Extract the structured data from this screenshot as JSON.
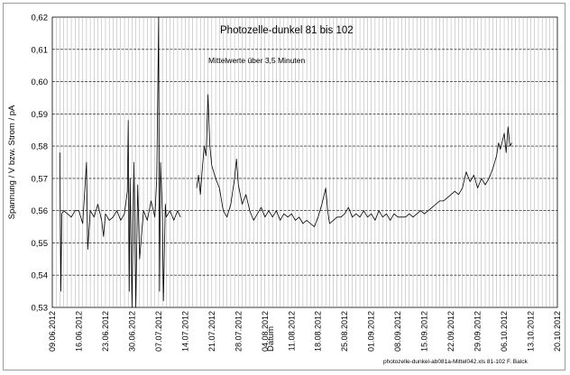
{
  "chart_data": {
    "type": "line",
    "title": "Photozelle-dunkel  81 bis 102",
    "subtitle": "Mittelwerte über 3,5 Minuten",
    "xlabel": "Datum",
    "ylabel": "Spannung / V  bzw. Strom / pA",
    "footer": "photozelle-dunkel-ab081a-Mittel042.xls 81-102 F. Balck",
    "xlim": [
      "2012-06-09",
      "2012-10-20"
    ],
    "ylim": [
      0.53,
      0.62
    ],
    "y_ticks": [
      "0,53",
      "0,54",
      "0,55",
      "0,56",
      "0,57",
      "0,58",
      "0,59",
      "0,60",
      "0,61",
      "0,62"
    ],
    "x_ticks": [
      "09.06.2012",
      "16.06.2012",
      "23.06.2012",
      "30.06.2012",
      "07.07.2012",
      "14.07.2012",
      "21.07.2012",
      "28.07.2012",
      "04.08.2012",
      "11.08.2012",
      "18.08.2012",
      "25.08.2012",
      "01.09.2012",
      "08.09.2012",
      "15.09.2012",
      "22.09.2012",
      "29.09.2012",
      "06.10.2012",
      "13.10.2012",
      "20.10.2012"
    ],
    "grid": true,
    "line_color": "#000000",
    "series_points": [
      [
        "2012-06-11T00:00",
        0.578
      ],
      [
        "2012-06-11T06:00",
        0.535
      ],
      [
        "2012-06-11T12:00",
        0.559
      ],
      [
        "2012-06-12T00:00",
        0.56
      ],
      [
        "2012-06-13T00:00",
        0.559
      ],
      [
        "2012-06-14T00:00",
        0.558
      ],
      [
        "2012-06-15T00:00",
        0.56
      ],
      [
        "2012-06-16T00:00",
        0.56
      ],
      [
        "2012-06-17T00:00",
        0.556
      ],
      [
        "2012-06-18T00:00",
        0.575
      ],
      [
        "2012-06-18T08:00",
        0.548
      ],
      [
        "2012-06-19T00:00",
        0.56
      ],
      [
        "2012-06-20T00:00",
        0.558
      ],
      [
        "2012-06-21T00:00",
        0.562
      ],
      [
        "2012-06-22T00:00",
        0.557
      ],
      [
        "2012-06-22T12:00",
        0.552
      ],
      [
        "2012-06-23T00:00",
        0.559
      ],
      [
        "2012-06-24T00:00",
        0.557
      ],
      [
        "2012-06-25T00:00",
        0.558
      ],
      [
        "2012-06-26T00:00",
        0.56
      ],
      [
        "2012-06-27T00:00",
        0.557
      ],
      [
        "2012-06-28T00:00",
        0.559
      ],
      [
        "2012-06-28T18:00",
        0.566
      ],
      [
        "2012-06-29T00:00",
        0.588
      ],
      [
        "2012-06-29T06:00",
        0.535
      ],
      [
        "2012-06-29T12:00",
        0.57
      ],
      [
        "2012-06-30T00:00",
        0.53
      ],
      [
        "2012-06-30T12:00",
        0.575
      ],
      [
        "2012-07-01T00:00",
        0.53
      ],
      [
        "2012-07-01T12:00",
        0.568
      ],
      [
        "2012-07-02T00:00",
        0.545
      ],
      [
        "2012-07-03T00:00",
        0.56
      ],
      [
        "2012-07-04T00:00",
        0.557
      ],
      [
        "2012-07-05T00:00",
        0.563
      ],
      [
        "2012-07-06T00:00",
        0.558
      ],
      [
        "2012-07-06T12:00",
        0.57
      ],
      [
        "2012-07-07T00:00",
        0.62
      ],
      [
        "2012-07-07T06:00",
        0.535
      ],
      [
        "2012-07-07T12:00",
        0.575
      ],
      [
        "2012-07-08T00:00",
        0.558
      ],
      [
        "2012-07-08T06:00",
        0.532
      ],
      [
        "2012-07-08T18:00",
        0.562
      ],
      [
        "2012-07-09T00:00",
        0.558
      ],
      [
        "2012-07-10T00:00",
        0.56
      ],
      [
        "2012-07-11T00:00",
        0.557
      ],
      [
        "2012-07-12T00:00",
        0.56
      ],
      [
        "2012-07-12T18:00",
        0.558
      ],
      null,
      [
        "2012-07-17T00:00",
        0.567
      ],
      [
        "2012-07-17T12:00",
        0.571
      ],
      [
        "2012-07-18T00:00",
        0.565
      ],
      [
        "2012-07-18T12:00",
        0.573
      ],
      [
        "2012-07-19T00:00",
        0.58
      ],
      [
        "2012-07-19T12:00",
        0.577
      ],
      [
        "2012-07-20T00:00",
        0.596
      ],
      [
        "2012-07-20T12:00",
        0.58
      ],
      [
        "2012-07-21T00:00",
        0.574
      ],
      [
        "2012-07-22T00:00",
        0.57
      ],
      [
        "2012-07-23T00:00",
        0.567
      ],
      [
        "2012-07-24T00:00",
        0.56
      ],
      [
        "2012-07-25T00:00",
        0.558
      ],
      [
        "2012-07-26T00:00",
        0.562
      ],
      [
        "2012-07-27T00:00",
        0.57
      ],
      [
        "2012-07-27T12:00",
        0.576
      ],
      [
        "2012-07-28T00:00",
        0.568
      ],
      [
        "2012-07-29T00:00",
        0.562
      ],
      [
        "2012-07-30T00:00",
        0.565
      ],
      [
        "2012-07-31T00:00",
        0.56
      ],
      [
        "2012-08-01T00:00",
        0.557
      ],
      [
        "2012-08-02T00:00",
        0.559
      ],
      [
        "2012-08-03T00:00",
        0.561
      ],
      [
        "2012-08-04T00:00",
        0.558
      ],
      [
        "2012-08-05T00:00",
        0.56
      ],
      [
        "2012-08-06T00:00",
        0.558
      ],
      [
        "2012-08-07T00:00",
        0.56
      ],
      [
        "2012-08-08T00:00",
        0.557
      ],
      [
        "2012-08-09T00:00",
        0.559
      ],
      [
        "2012-08-10T00:00",
        0.558
      ],
      [
        "2012-08-11T00:00",
        0.559
      ],
      [
        "2012-08-12T00:00",
        0.557
      ],
      [
        "2012-08-13T00:00",
        0.558
      ],
      [
        "2012-08-14T00:00",
        0.556
      ],
      [
        "2012-08-15T00:00",
        0.557
      ],
      [
        "2012-08-16T00:00",
        0.556
      ],
      [
        "2012-08-17T00:00",
        0.555
      ],
      [
        "2012-08-18T00:00",
        0.558
      ],
      [
        "2012-08-19T00:00",
        0.562
      ],
      [
        "2012-08-20T00:00",
        0.567
      ],
      [
        "2012-08-20T12:00",
        0.56
      ],
      [
        "2012-08-21T00:00",
        0.556
      ],
      [
        "2012-08-22T00:00",
        0.557
      ],
      [
        "2012-08-23T00:00",
        0.558
      ],
      [
        "2012-08-24T00:00",
        0.558
      ],
      [
        "2012-08-25T00:00",
        0.559
      ],
      [
        "2012-08-26T00:00",
        0.561
      ],
      [
        "2012-08-27T00:00",
        0.558
      ],
      [
        "2012-08-28T00:00",
        0.559
      ],
      [
        "2012-08-29T00:00",
        0.558
      ],
      [
        "2012-08-30T00:00",
        0.56
      ],
      [
        "2012-08-31T00:00",
        0.558
      ],
      [
        "2012-09-01T00:00",
        0.559
      ],
      [
        "2012-09-02T00:00",
        0.557
      ],
      [
        "2012-09-03T00:00",
        0.56
      ],
      [
        "2012-09-04T00:00",
        0.558
      ],
      [
        "2012-09-05T00:00",
        0.559
      ],
      [
        "2012-09-06T00:00",
        0.557
      ],
      [
        "2012-09-07T00:00",
        0.559
      ],
      [
        "2012-09-08T00:00",
        0.558
      ],
      [
        "2012-09-09T00:00",
        0.558
      ],
      [
        "2012-09-10T00:00",
        0.558
      ],
      [
        "2012-09-11T00:00",
        0.559
      ],
      [
        "2012-09-12T00:00",
        0.558
      ],
      [
        "2012-09-13T00:00",
        0.559
      ],
      [
        "2012-09-14T00:00",
        0.56
      ],
      [
        "2012-09-15T00:00",
        0.559
      ],
      [
        "2012-09-16T00:00",
        0.56
      ],
      [
        "2012-09-17T00:00",
        0.561
      ],
      [
        "2012-09-18T00:00",
        0.562
      ],
      [
        "2012-09-19T00:00",
        0.563
      ],
      [
        "2012-09-20T00:00",
        0.563
      ],
      [
        "2012-09-21T00:00",
        0.564
      ],
      [
        "2012-09-22T00:00",
        0.565
      ],
      [
        "2012-09-23T00:00",
        0.566
      ],
      [
        "2012-09-24T00:00",
        0.565
      ],
      [
        "2012-09-25T00:00",
        0.567
      ],
      [
        "2012-09-26T00:00",
        0.572
      ],
      [
        "2012-09-27T00:00",
        0.569
      ],
      [
        "2012-09-28T00:00",
        0.571
      ],
      [
        "2012-09-29T00:00",
        0.567
      ],
      [
        "2012-09-30T00:00",
        0.57
      ],
      [
        "2012-10-01T00:00",
        0.568
      ],
      [
        "2012-10-02T00:00",
        0.57
      ],
      [
        "2012-10-03T00:00",
        0.573
      ],
      [
        "2012-10-04T00:00",
        0.577
      ],
      [
        "2012-10-04T12:00",
        0.581
      ],
      [
        "2012-10-05T00:00",
        0.579
      ],
      [
        "2012-10-06T00:00",
        0.584
      ],
      [
        "2012-10-06T12:00",
        0.578
      ],
      [
        "2012-10-07T00:00",
        0.586
      ],
      [
        "2012-10-07T12:00",
        0.58
      ],
      [
        "2012-10-08T00:00",
        0.581
      ]
    ]
  }
}
